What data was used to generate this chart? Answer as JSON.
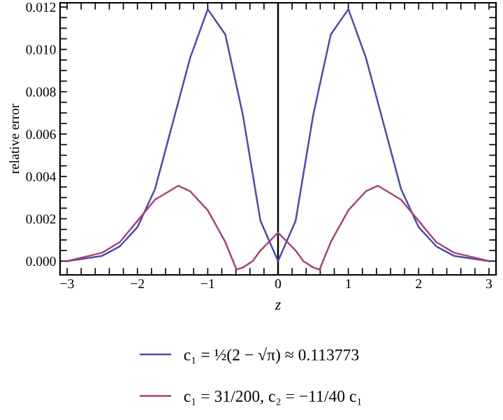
{
  "chart_data": {
    "type": "line",
    "xlabel": "z",
    "ylabel": "relative error",
    "xlim": [
      -3.1,
      3.1
    ],
    "ylim": [
      -0.00065,
      0.0122
    ],
    "xticks": [
      {
        "value": -3,
        "label": "−3"
      },
      {
        "value": -2.8,
        "label": null
      },
      {
        "value": -2.6,
        "label": null
      },
      {
        "value": -2.4,
        "label": null
      },
      {
        "value": -2.2,
        "label": null
      },
      {
        "value": -2,
        "label": "−2"
      },
      {
        "value": -1.8,
        "label": null
      },
      {
        "value": -1.6,
        "label": null
      },
      {
        "value": -1.4,
        "label": null
      },
      {
        "value": -1.2,
        "label": null
      },
      {
        "value": -1,
        "label": "−1"
      },
      {
        "value": -0.8,
        "label": null
      },
      {
        "value": -0.6,
        "label": null
      },
      {
        "value": -0.4,
        "label": null
      },
      {
        "value": -0.2,
        "label": null
      },
      0,
      {
        "value": 0.2,
        "label": null
      },
      {
        "value": 0.4,
        "label": null
      },
      {
        "value": 0.6,
        "label": null
      },
      {
        "value": 0.8,
        "label": null
      },
      1,
      {
        "value": 1.2,
        "label": null
      },
      {
        "value": 1.4,
        "label": null
      },
      {
        "value": 1.6,
        "label": null
      },
      {
        "value": 1.8,
        "label": null
      },
      2,
      {
        "value": 2.2,
        "label": null
      },
      {
        "value": 2.4,
        "label": null
      },
      {
        "value": 2.6,
        "label": null
      },
      {
        "value": 2.8,
        "label": null
      },
      3
    ],
    "yticks": [
      {
        "value": 0,
        "label": "0.000"
      },
      {
        "value": 0.0005,
        "label": null
      },
      {
        "value": 0.001,
        "label": null
      },
      {
        "value": 0.0015,
        "label": null
      },
      {
        "value": 0.002,
        "label": "0.002"
      },
      {
        "value": 0.0025,
        "label": null
      },
      {
        "value": 0.003,
        "label": null
      },
      {
        "value": 0.0035,
        "label": null
      },
      {
        "value": 0.004,
        "label": "0.004"
      },
      {
        "value": 0.0045,
        "label": null
      },
      {
        "value": 0.005,
        "label": null
      },
      {
        "value": 0.0055,
        "label": null
      },
      {
        "value": 0.006,
        "label": "0.006"
      },
      {
        "value": 0.0065,
        "label": null
      },
      {
        "value": 0.007,
        "label": null
      },
      {
        "value": 0.0075,
        "label": null
      },
      {
        "value": 0.008,
        "label": "0.008"
      },
      {
        "value": 0.0085,
        "label": null
      },
      {
        "value": 0.009,
        "label": null
      },
      {
        "value": 0.0095,
        "label": null
      },
      {
        "value": 0.01,
        "label": "0.010"
      },
      {
        "value": 0.0105,
        "label": null
      },
      {
        "value": 0.011,
        "label": null
      },
      {
        "value": 0.0115,
        "label": null
      },
      {
        "value": 0.012,
        "label": "0.012"
      }
    ],
    "grid": false,
    "legend": "bottom",
    "marker": "none",
    "line_style": "solid",
    "ref_lines": [
      {
        "axis": "x",
        "value": 0,
        "color": "#000000"
      }
    ],
    "series": [
      {
        "name": "c₁ = ½(2 − √π) ≈ 0.113773",
        "color": "#4b4ba8",
        "x": [
          -3,
          -2.5,
          -2.25,
          -2,
          -1.75,
          -1.5,
          -1.25,
          -1,
          -0.75,
          -0.5,
          -0.25,
          0,
          0.25,
          0.5,
          0.75,
          1,
          1.25,
          1.5,
          1.75,
          2,
          2.25,
          2.5,
          3
        ],
        "values": [
          0.0,
          0.00025,
          0.0007,
          0.0016,
          0.0034,
          0.0065,
          0.0096,
          0.0119,
          0.0107,
          0.0069,
          0.0019,
          0.0,
          0.0019,
          0.0069,
          0.0107,
          0.0119,
          0.0096,
          0.0065,
          0.0034,
          0.0016,
          0.0007,
          0.00025,
          0.0
        ]
      },
      {
        "name": "c₁ = 31/200, c₂ = −11/40 c₁",
        "color": "#a3457a",
        "x": [
          -3,
          -2.5,
          -2.25,
          -2,
          -1.75,
          -1.42,
          -1.25,
          -1,
          -0.75,
          -0.59,
          -0.5,
          -0.36,
          -0.25,
          0,
          0.25,
          0.36,
          0.5,
          0.59,
          0.75,
          1,
          1.25,
          1.42,
          1.75,
          2,
          2.25,
          2.5,
          3
        ],
        "values": [
          0.0,
          0.0004,
          0.0009,
          0.0019,
          0.0029,
          0.00356,
          0.0033,
          0.0024,
          0.0009,
          -0.0004,
          -0.0003,
          0.0,
          0.0005,
          0.00135,
          0.0005,
          0.0,
          -0.0003,
          -0.0004,
          0.0009,
          0.0024,
          0.0033,
          0.00356,
          0.0029,
          0.0019,
          0.0009,
          0.0004,
          0.0
        ]
      }
    ]
  }
}
